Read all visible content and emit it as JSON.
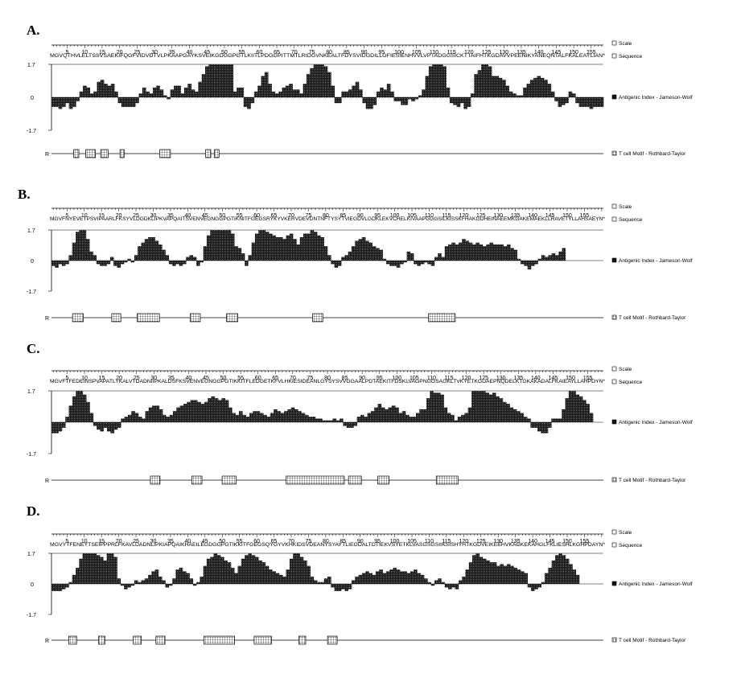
{
  "figure": {
    "legend": {
      "scale": "Scale",
      "sequence": "Sequence",
      "antigenic": "Antigenic Index - Jameson-Wolf",
      "tcell": "T cell Motif  - Rothbard-Taylor"
    },
    "track_label": "R"
  },
  "chart_data": [
    {
      "type": "bar",
      "panel": "A.",
      "sequence": "MGVQTHVLELTSSVSAEKIFQGFVIDVDTVLPKAAPGAYKSVEIKGDGGPGTLKIITLPDGGPITTMTLRIDGVNKEALTFDYSVIDGDILLGFIESIENHVVLVPTADGGSICKTTAIFHTKGDAVVPEENIKYANEQNTALFKALEAYLIAN*",
      "length": 158,
      "x_ticks": [
        5,
        10,
        15,
        20,
        25,
        30,
        35,
        40,
        45,
        50,
        55,
        60,
        65,
        70,
        75,
        80,
        85,
        90,
        95,
        100,
        105,
        110,
        115,
        120,
        125,
        130,
        135,
        140,
        145,
        150,
        155
      ],
      "y_ticks": [
        "1.7",
        "0",
        "-1.7"
      ],
      "ylim": [
        -1.7,
        1.7
      ],
      "antigenic_index": [
        -0.5,
        -0.5,
        -0.6,
        -0.5,
        -0.3,
        -0.6,
        -0.5,
        -0.2,
        0.3,
        0.6,
        0.5,
        0.2,
        0.3,
        0.8,
        0.9,
        0.7,
        0.6,
        0.7,
        0.3,
        -0.3,
        -0.5,
        -0.5,
        -0.5,
        -0.5,
        -0.3,
        0.2,
        0.5,
        0.3,
        0.2,
        0.5,
        0.6,
        0.4,
        0.1,
        -0.1,
        0.4,
        0.6,
        0.6,
        0.2,
        0.5,
        0.7,
        0.4,
        0.3,
        0.8,
        1.2,
        1.6,
        1.7,
        1.7,
        1.7,
        1.7,
        1.7,
        1.7,
        1.7,
        0.3,
        0.5,
        0.5,
        -0.5,
        -0.6,
        -0.3,
        0.3,
        0.6,
        1.1,
        1.3,
        0.7,
        0.3,
        0.2,
        0.3,
        0.5,
        0.6,
        0.7,
        0.4,
        0.4,
        0.2,
        0.7,
        1.2,
        1.5,
        1.7,
        1.7,
        1.7,
        1.6,
        1.3,
        0.6,
        -0.3,
        -0.3,
        0.3,
        0.3,
        0.4,
        0.6,
        0.8,
        0.4,
        -0.3,
        -0.6,
        -0.6,
        -0.4,
        0.3,
        0.5,
        0.4,
        0.7,
        0.3,
        -0.2,
        -0.2,
        -0.4,
        -0.4,
        -0.1,
        -0.2,
        -0.1,
        0.1,
        0.4,
        1.1,
        1.6,
        1.7,
        1.7,
        1.7,
        1.6,
        0.5,
        -0.3,
        -0.4,
        -0.5,
        -0.3,
        -0.6,
        -0.5,
        0.2,
        1.2,
        1.4,
        1.7,
        1.7,
        1.6,
        1.1,
        1.1,
        1.0,
        0.9,
        0.6,
        0.3,
        0.2,
        0.1,
        0.1,
        0.5,
        0.7,
        0.9,
        1.0,
        1.1,
        1.0,
        0.9,
        0.7,
        0.3,
        -0.2,
        -0.5,
        -0.4,
        -0.3,
        0.3,
        0.2,
        -0.3,
        -0.5,
        -0.5,
        -0.5,
        -0.6,
        -0.5,
        -0.5,
        -0.5
      ],
      "tcell_motifs": [
        [
          11,
          19
        ],
        [
          33,
          49
        ],
        [
          60,
          72
        ],
        [
          95,
          101
        ],
        [
          167,
          185
        ],
        [
          250,
          258
        ],
        [
          266,
          273
        ]
      ]
    },
    {
      "type": "bar",
      "panel": "B.",
      "sequence": "MGVFNYEVETPSVIPAARLFKSYVLDGDKLIPKVAPQAITSVENVEGNGGPGTIKNITFGEGSRYKYVKERVDEVDNTNFTYSYTVIEGDVLGDKLEKVCHELKIVAAPGGGSILKISSKFHAKGDHEINAEEMKGAKEMAEKLLRAVETYLLAHSAEYN*",
      "length": 160,
      "x_ticks": [
        5,
        10,
        15,
        20,
        25,
        30,
        35,
        40,
        45,
        50,
        55,
        60,
        65,
        70,
        75,
        80,
        85,
        90,
        95,
        100,
        105,
        110,
        115,
        120,
        125,
        130,
        135,
        140,
        145,
        150,
        155
      ],
      "y_ticks": [
        "1.7",
        "0",
        "-1.7"
      ],
      "ylim": [
        -1.7,
        1.7
      ],
      "antigenic_index": [
        -0.3,
        -0.4,
        -0.2,
        -0.3,
        -0.2,
        0.3,
        1.0,
        1.6,
        1.7,
        1.7,
        1.2,
        0.5,
        0.3,
        -0.2,
        -0.3,
        -0.3,
        -0.2,
        0.2,
        -0.3,
        -0.4,
        -0.2,
        -0.1,
        0.1,
        -0.1,
        0.3,
        0.8,
        1.0,
        1.2,
        1.3,
        1.3,
        1.1,
        0.9,
        0.6,
        0.3,
        -0.2,
        -0.3,
        -0.2,
        -0.3,
        -0.2,
        0.2,
        0.3,
        0.2,
        -0.3,
        -0.1,
        0.8,
        1.4,
        1.7,
        1.7,
        1.7,
        1.7,
        1.7,
        1.7,
        1.5,
        0.8,
        0.7,
        0.4,
        -0.3,
        0.3,
        1.0,
        1.5,
        1.7,
        1.7,
        1.6,
        1.5,
        1.4,
        1.3,
        1.3,
        1.2,
        1.4,
        1.5,
        1.2,
        0.9,
        1.3,
        1.5,
        1.5,
        1.7,
        1.6,
        1.4,
        1.3,
        0.8,
        0.3,
        -0.2,
        -0.4,
        -0.3,
        0.2,
        0.3,
        0.5,
        0.8,
        1.1,
        1.2,
        1.3,
        1.1,
        1.0,
        0.8,
        0.7,
        0.6,
        0.1,
        -0.2,
        -0.3,
        -0.3,
        -0.4,
        -0.2,
        -0.1,
        0.5,
        0.4,
        -0.2,
        -0.3,
        -0.2,
        -0.1,
        -0.2,
        -0.3,
        0.2,
        0.4,
        0.2,
        0.8,
        0.9,
        1.0,
        0.9,
        1.0,
        1.2,
        1.1,
        1.0,
        0.9,
        1.0,
        0.9,
        0.8,
        0.9,
        1.0,
        0.9,
        0.9,
        0.9,
        0.8,
        0.9,
        0.7,
        0.6,
        0.1,
        -0.2,
        -0.3,
        -0.5,
        -0.3,
        -0.2,
        0.1,
        0.3,
        0.2,
        0.3,
        0.4,
        0.3,
        0.5,
        0.7
      ],
      "tcell_motifs": [
        [
          9,
          27
        ],
        [
          80,
          95
        ],
        [
          126,
          165
        ],
        [
          222,
          239
        ],
        [
          288,
          307
        ],
        [
          444,
          461
        ],
        [
          654,
          701
        ]
      ]
    },
    {
      "type": "bar",
      "panel": "C.",
      "sequence": "MGVFTFEDEINSPVAPATLYKALVTDADNIIPKALDSFKSVENVEGNGGPGTIKKITFLEDGETKFVLHKIESIDEANLGYSYSVVGGAALPDTAEKITFDSKLVAGPNGGSAGKLTVKYETKGDAEPNQDELKTGKAKADALFKAIEAYLLAHPDYN*",
      "length": 159,
      "x_ticks": [
        5,
        10,
        15,
        20,
        25,
        30,
        35,
        40,
        45,
        50,
        55,
        60,
        65,
        70,
        75,
        80,
        85,
        90,
        95,
        100,
        105,
        110,
        115,
        120,
        125,
        130,
        135,
        140,
        145,
        150,
        155
      ],
      "y_ticks": [
        "1.7",
        "",
        "-1.7"
      ],
      "ylim": [
        -1.7,
        1.7
      ],
      "antigenic_index": [
        -0.6,
        -0.6,
        -0.5,
        -0.3,
        0.3,
        0.9,
        1.4,
        1.7,
        1.7,
        1.5,
        1.1,
        0.5,
        -0.2,
        -0.4,
        -0.5,
        -0.3,
        -0.5,
        -0.6,
        -0.4,
        -0.3,
        0.2,
        0.3,
        0.4,
        0.6,
        0.5,
        0.3,
        0.2,
        0.6,
        0.8,
        0.9,
        0.9,
        0.7,
        0.4,
        0.3,
        0.4,
        0.6,
        0.8,
        0.9,
        1.0,
        1.1,
        1.2,
        1.2,
        1.1,
        1.0,
        1.1,
        1.3,
        1.4,
        1.3,
        1.2,
        1.3,
        1.2,
        0.8,
        0.5,
        0.4,
        0.6,
        0.4,
        0.3,
        0.5,
        0.6,
        0.6,
        0.5,
        0.4,
        0.3,
        0.5,
        0.7,
        0.6,
        0.5,
        0.6,
        0.7,
        0.8,
        0.7,
        0.6,
        0.5,
        0.4,
        0.3,
        0.3,
        0.2,
        0.2,
        0.1,
        0.1,
        0.1,
        0.2,
        0.1,
        0.2,
        -0.2,
        -0.3,
        -0.3,
        -0.2,
        0.3,
        0.4,
        0.3,
        0.5,
        0.6,
        0.8,
        1.0,
        0.8,
        0.7,
        0.8,
        0.9,
        0.8,
        0.5,
        0.6,
        0.4,
        0.3,
        0.3,
        0.5,
        0.7,
        0.7,
        1.3,
        1.7,
        1.6,
        1.6,
        1.5,
        0.8,
        0.5,
        0.4,
        0.1,
        0.3,
        0.4,
        0.5,
        0.8,
        1.7,
        1.7,
        1.7,
        1.7,
        1.6,
        1.5,
        1.6,
        1.4,
        1.3,
        1.1,
        1.0,
        0.8,
        0.7,
        0.6,
        0.5,
        0.3,
        0.2,
        -0.3,
        -0.3,
        -0.5,
        -0.6,
        -0.6,
        -0.3,
        0.2,
        0.2,
        0.2,
        0.7,
        1.3,
        1.7,
        1.7,
        1.5,
        1.4,
        1.2,
        1.0,
        0.5
      ],
      "tcell_motifs": [
        [
          150,
          166
        ],
        [
          225,
          242
        ],
        [
          280,
          304
        ],
        [
          396,
          500
        ],
        [
          509,
          531
        ],
        [
          562,
          581
        ],
        [
          668,
          706
        ]
      ]
    },
    {
      "type": "bar",
      "panel": "D.",
      "sequence": "MGVYTFENEYTSEIPPPRLFKAVLDADNLIPKIAPQAIKHAEILEGDGGPGTIKKITFGEGSQYGYVKHKIDSVDEANYSYAYTLIEGDALTDTIEKVSYETKLVASGSGSIIKSISHYHTKGDVEIKEEHVKAGKEKAHGLFKLIESHLKGHPDAYN*",
      "length": 160,
      "x_ticks": [
        5,
        10,
        15,
        20,
        25,
        30,
        35,
        40,
        45,
        50,
        55,
        60,
        65,
        70,
        75,
        80,
        85,
        90,
        95,
        100,
        105,
        110,
        115,
        120,
        125,
        130,
        135,
        140,
        145,
        150,
        155
      ],
      "y_ticks": [
        "1.7",
        "0",
        "-1.7"
      ],
      "ylim": [
        -1.7,
        1.7
      ],
      "antigenic_index": [
        -0.4,
        -0.4,
        -0.4,
        -0.3,
        -0.2,
        0.1,
        0.5,
        0.9,
        1.4,
        1.7,
        1.7,
        1.7,
        1.7,
        1.6,
        1.5,
        1.3,
        1.7,
        1.7,
        1.5,
        0.3,
        -0.1,
        -0.3,
        -0.2,
        -0.1,
        0.2,
        0.1,
        0.2,
        0.3,
        0.5,
        0.7,
        0.8,
        0.4,
        0.2,
        -0.2,
        -0.1,
        0.3,
        0.8,
        0.9,
        0.7,
        0.6,
        0.3,
        -0.1,
        0.1,
        0.4,
        1.0,
        1.4,
        1.5,
        1.7,
        1.6,
        1.5,
        1.3,
        1.2,
        0.9,
        0.6,
        1.0,
        1.4,
        1.6,
        1.7,
        1.6,
        1.5,
        1.3,
        1.2,
        1.0,
        0.8,
        0.7,
        0.6,
        0.5,
        0.4,
        0.8,
        1.4,
        1.7,
        1.7,
        1.5,
        1.3,
        1.0,
        0.4,
        0.2,
        0.1,
        0.1,
        0.3,
        0.4,
        -0.2,
        -0.4,
        -0.4,
        -0.3,
        -0.4,
        -0.3,
        0.2,
        0.4,
        0.5,
        0.6,
        0.7,
        0.6,
        0.5,
        0.7,
        0.8,
        0.6,
        0.7,
        0.8,
        0.9,
        0.8,
        0.7,
        0.7,
        0.6,
        0.7,
        0.8,
        0.6,
        0.5,
        0.3,
        0.1,
        -0.1,
        0.2,
        0.3,
        0.1,
        -0.2,
        -0.3,
        -0.2,
        -0.3,
        0.2,
        0.4,
        0.8,
        1.2,
        1.6,
        1.7,
        1.5,
        1.4,
        1.3,
        1.2,
        1.2,
        1.0,
        1.1,
        1.0,
        1.1,
        1.0,
        0.9,
        0.8,
        0.7,
        0.6,
        -0.2,
        -0.4,
        -0.3,
        -0.2,
        0.1,
        0.6,
        0.9,
        1.3,
        1.6,
        1.7,
        1.6,
        1.4,
        1.1,
        0.8,
        0.5
      ],
      "tcell_motifs": [
        [
          2,
          15
        ],
        [
          56,
          66
        ],
        [
          119,
          132
        ],
        [
          160,
          175
        ],
        [
          247,
          301
        ],
        [
          338,
          368
        ],
        [
          419,
          430
        ],
        [
          471,
          487
        ]
      ]
    }
  ]
}
